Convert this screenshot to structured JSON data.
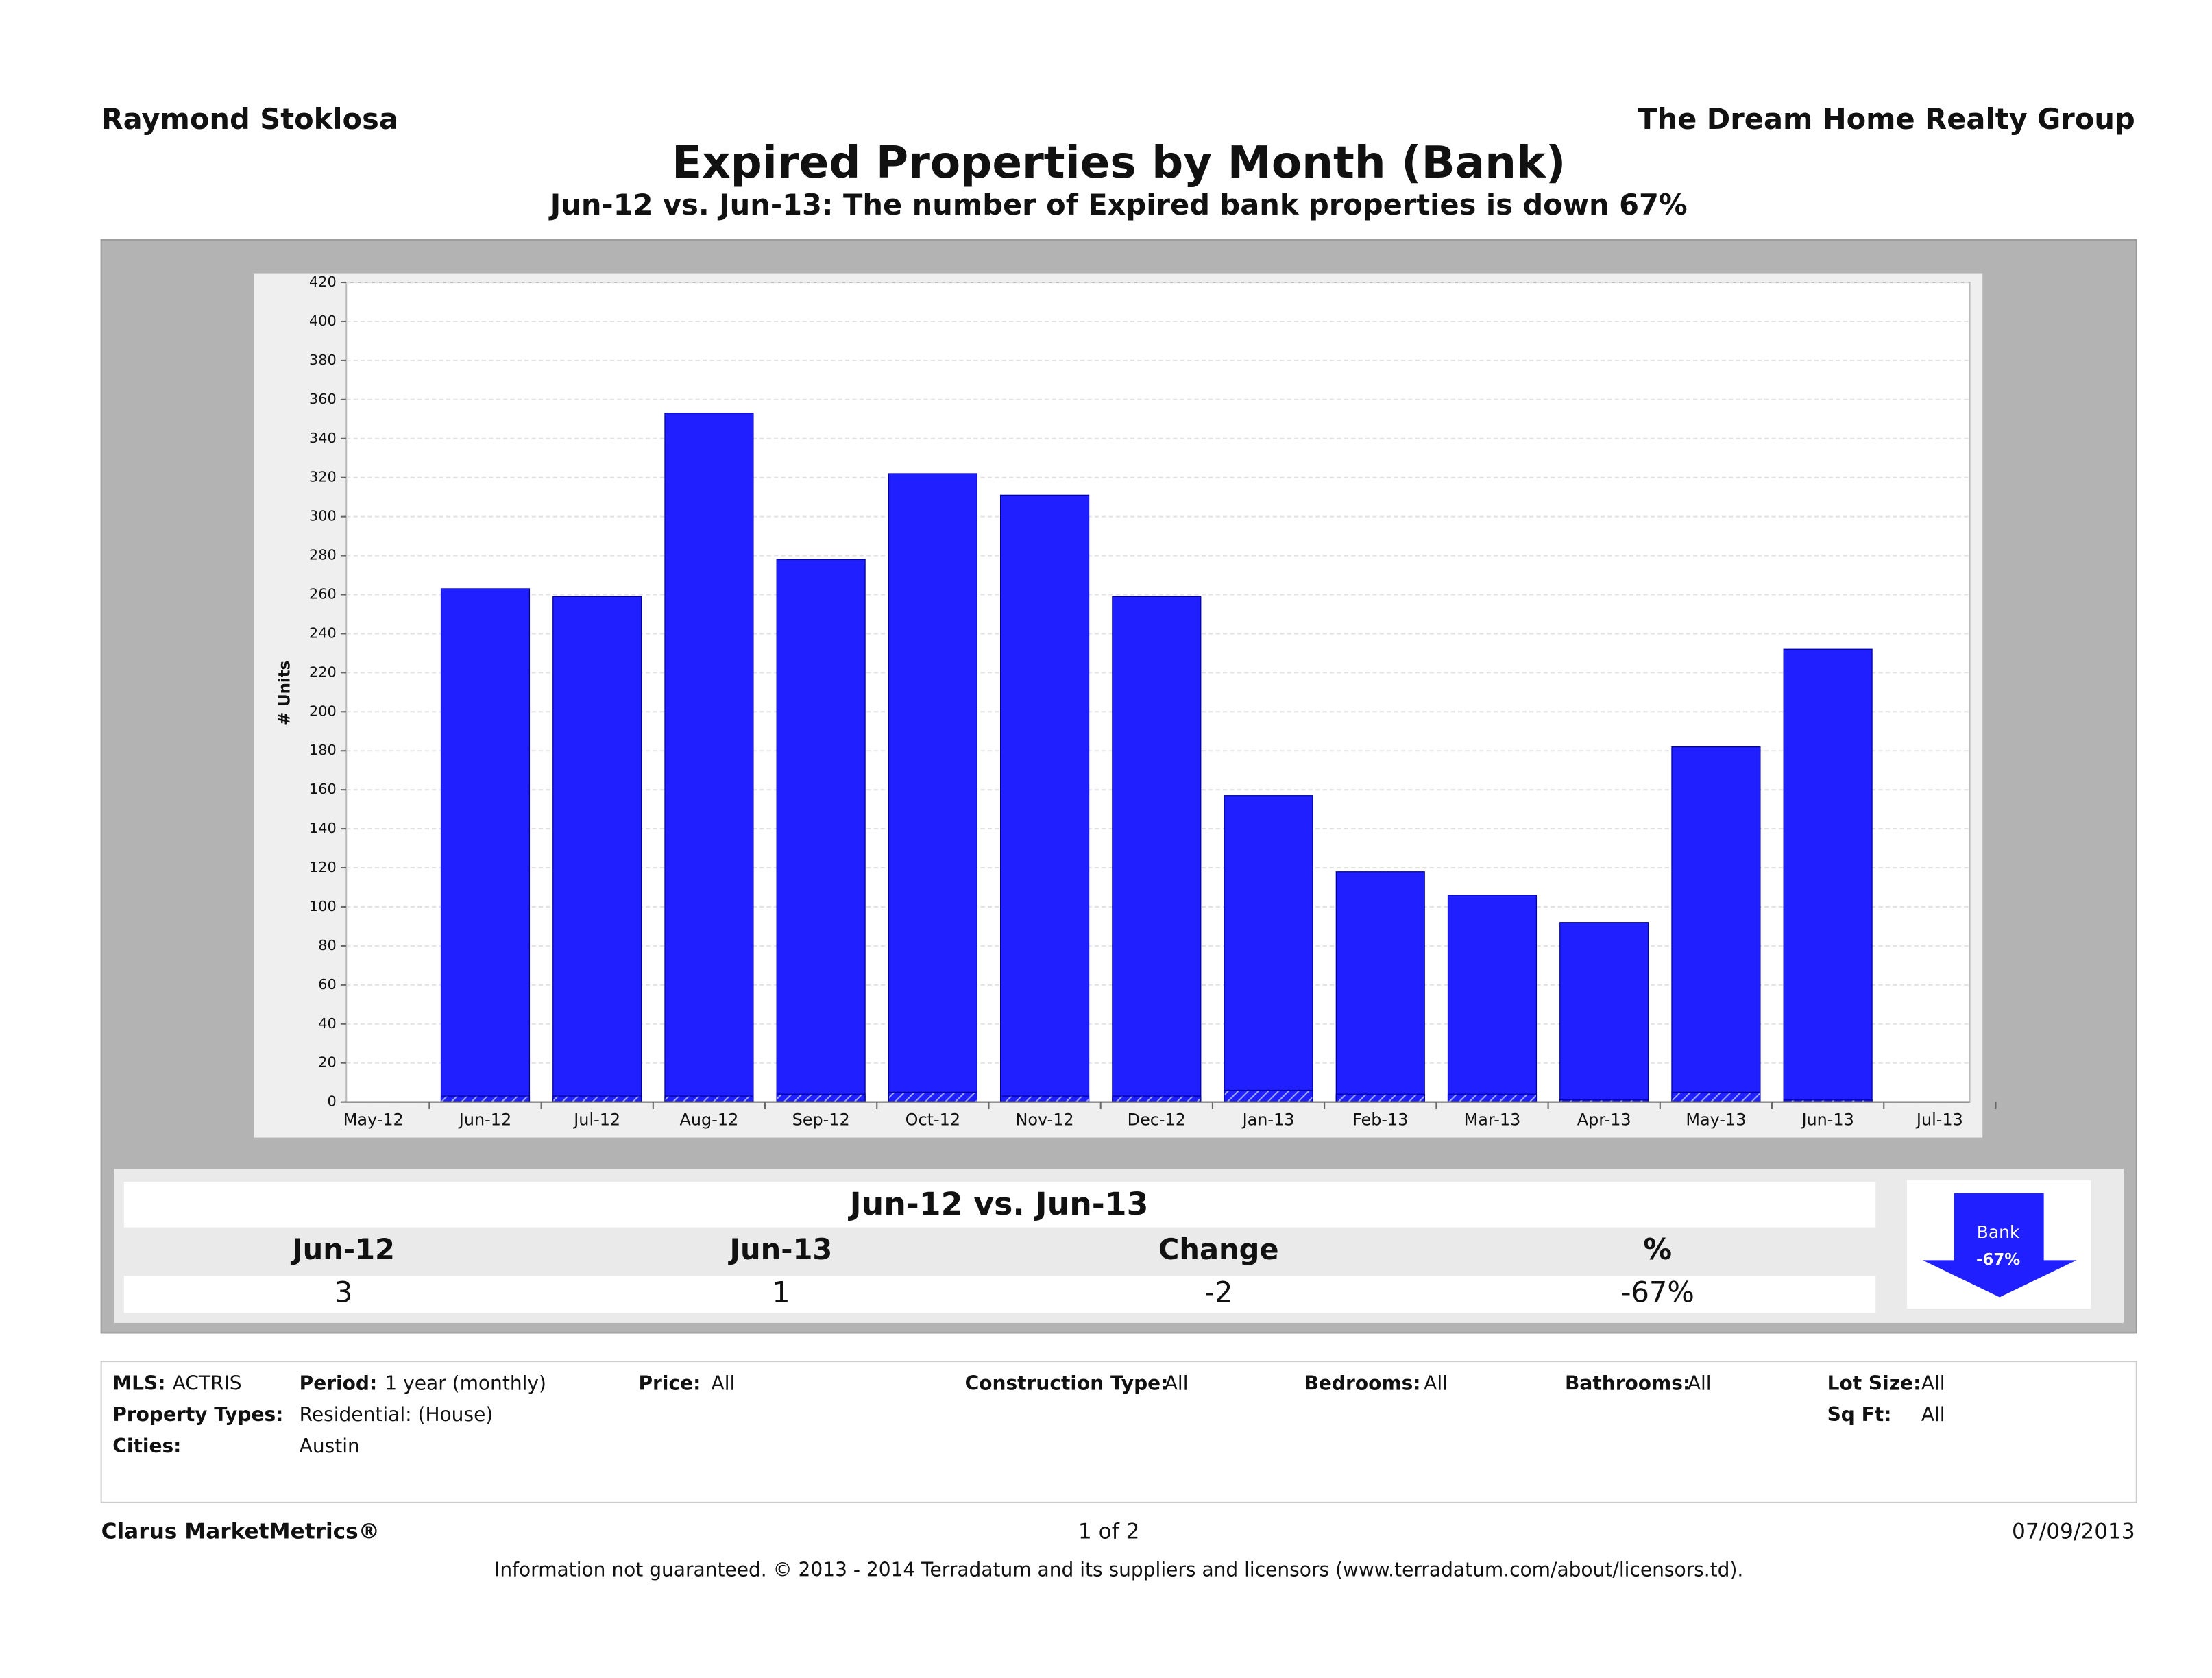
{
  "header": {
    "left": "Raymond Stoklosa",
    "right": "The Dream Home Realty Group"
  },
  "chart_data": {
    "type": "bar",
    "title": "Expired Properties by Month (Bank)",
    "subtitle": "Jun-12 vs. Jun-13: The number of Expired bank properties is down 67%",
    "y_label": "# Units",
    "categories": [
      "May-12",
      "Jun-12",
      "Jul-12",
      "Aug-12",
      "Sep-12",
      "Oct-12",
      "Nov-12",
      "Dec-12",
      "Jan-13",
      "Feb-13",
      "Mar-13",
      "Apr-13",
      "May-13",
      "Jun-13",
      "Jul-13"
    ],
    "series": [
      {
        "color": "#1f1fff",
        "values": [
          null,
          263,
          259,
          353,
          278,
          322,
          311,
          259,
          157,
          118,
          106,
          92,
          182,
          232,
          null
        ]
      },
      {
        "color": "#1f1fff",
        "pattern": "hatched",
        "values": [
          null,
          3,
          3,
          3,
          4,
          5,
          3,
          3,
          6,
          4,
          4,
          1,
          5,
          1,
          null
        ]
      }
    ],
    "ylim": [
      0,
      420
    ],
    "yticks": [
      0,
      20,
      40,
      60,
      80,
      100,
      120,
      140,
      160,
      180,
      200,
      220,
      240,
      260,
      280,
      300,
      320,
      340,
      360,
      380,
      400,
      420
    ],
    "grid": true
  },
  "summary": {
    "title": "Jun-12 vs. Jun-13",
    "headers": [
      "Jun-12",
      "Jun-13",
      "Change",
      "%"
    ],
    "values": [
      "3",
      "1",
      "-2",
      "-67%"
    ]
  },
  "badge": {
    "label": "Bank",
    "value": "-67%"
  },
  "filters": [
    {
      "label": "MLS:",
      "value": "ACTRIS"
    },
    {
      "label": "Period:",
      "value": "1 year (monthly)"
    },
    {
      "label": "Price:",
      "value": "All"
    },
    {
      "label": "Construction Type:",
      "value": "All"
    },
    {
      "label": "Bedrooms:",
      "value": "All"
    },
    {
      "label": "Bathrooms:",
      "value": "All"
    },
    {
      "label": "Lot Size:",
      "value": "All"
    },
    {
      "label": "Property Types:",
      "value": "Residential: (House)"
    },
    {
      "label": "Sq Ft:",
      "value": "All"
    },
    {
      "label": "Cities:",
      "value": "Austin"
    }
  ],
  "footer": {
    "brand": "Clarus MarketMetrics®",
    "page": "1 of 2",
    "date": "07/09/2013",
    "disclaimer": "Information not guaranteed.  © 2013 - 2014 Terradatum and its suppliers and licensors (www.terradatum.com/about/licensors.td)."
  }
}
